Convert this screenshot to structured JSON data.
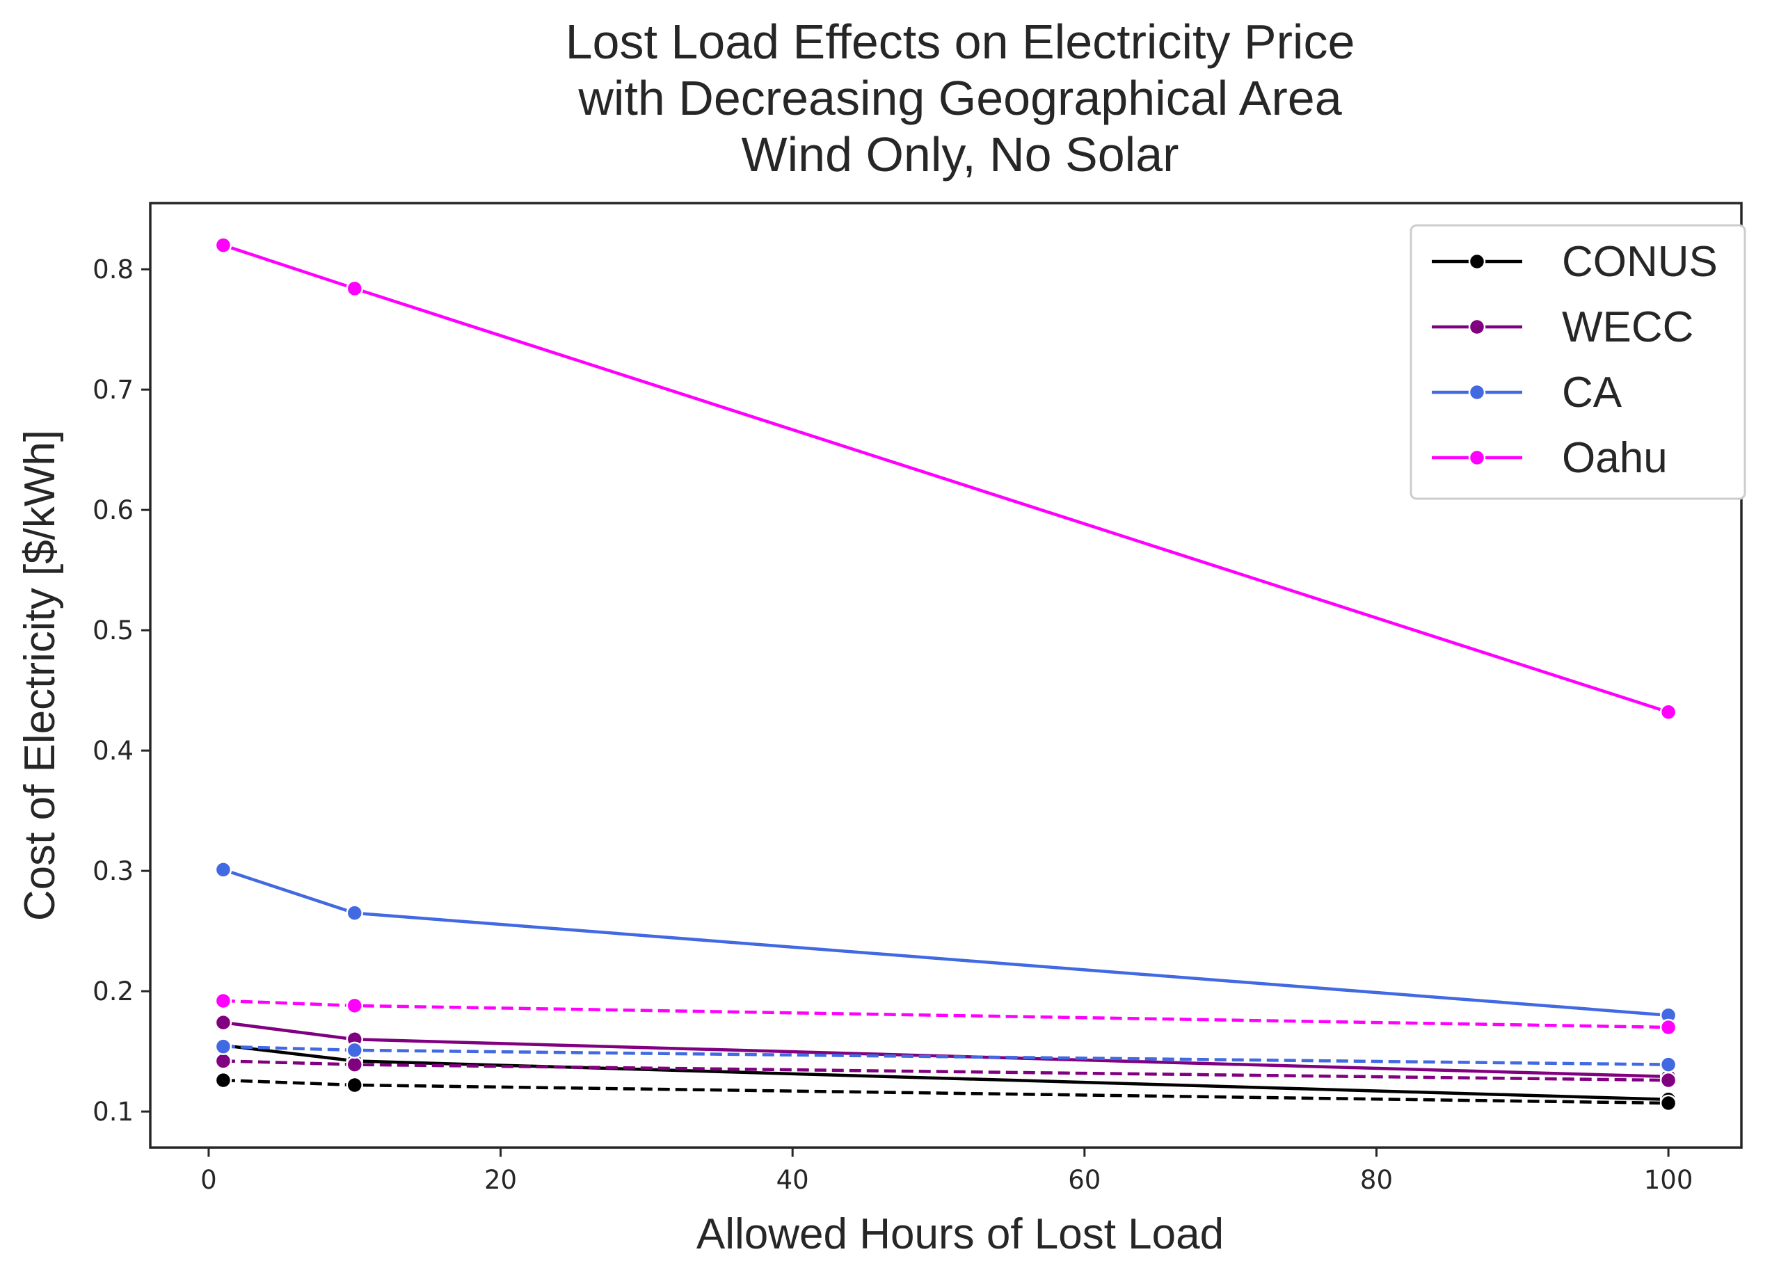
{
  "chart_data": {
    "type": "line",
    "title": [
      "Lost Load Effects on Electricity Price",
      "with Decreasing Geographical Area",
      "Wind Only, No Solar"
    ],
    "xlabel": "Allowed Hours of Lost Load",
    "ylabel": "Cost of Electricity [$/kWh]",
    "xlim": [
      -4,
      105
    ],
    "ylim": [
      0.07,
      0.855
    ],
    "xticks": [
      0,
      20,
      40,
      60,
      80,
      100
    ],
    "xtick_labels": [
      "0",
      "20",
      "40",
      "60",
      "80",
      "100"
    ],
    "yticks": [
      0.1,
      0.2,
      0.3,
      0.4,
      0.5,
      0.6,
      0.7,
      0.8
    ],
    "ytick_labels": [
      "0.1",
      "0.2",
      "0.3",
      "0.4",
      "0.5",
      "0.6",
      "0.7",
      "0.8"
    ],
    "grid": false,
    "legend_position": "top-right",
    "x": [
      1,
      10,
      100
    ],
    "series": [
      {
        "name": "CONUS",
        "color": "#000000",
        "style": "solid",
        "values": [
          0.155,
          0.142,
          0.11
        ]
      },
      {
        "name": "WECC",
        "color": "#800080",
        "style": "solid",
        "values": [
          0.174,
          0.16,
          0.129
        ]
      },
      {
        "name": "CA",
        "color": "#4169e1",
        "style": "solid",
        "values": [
          0.301,
          0.265,
          0.18
        ]
      },
      {
        "name": "Oahu",
        "color": "#ff00ff",
        "style": "solid",
        "values": [
          0.82,
          0.784,
          0.432
        ]
      },
      {
        "name": "",
        "legend": false,
        "color": "#000000",
        "style": "dashed",
        "values": [
          0.126,
          0.122,
          0.107
        ]
      },
      {
        "name": "",
        "legend": false,
        "color": "#800080",
        "style": "dashed",
        "values": [
          0.142,
          0.139,
          0.126
        ]
      },
      {
        "name": "",
        "legend": false,
        "color": "#4169e1",
        "style": "dashed",
        "values": [
          0.154,
          0.151,
          0.139
        ]
      },
      {
        "name": "",
        "legend": false,
        "color": "#ff00ff",
        "style": "dashed",
        "values": [
          0.192,
          0.188,
          0.17
        ]
      }
    ]
  }
}
